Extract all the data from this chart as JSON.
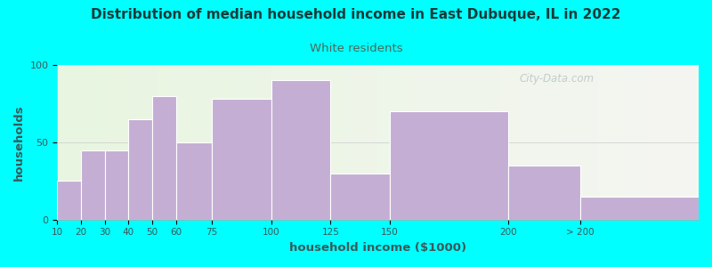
{
  "title": "Distribution of median household income in East Dubuque, IL in 2022",
  "subtitle": "White residents",
  "xlabel": "household income ($1000)",
  "ylabel": "households",
  "background_outer": "#00FFFF",
  "background_inner_left": "#e8f5e0",
  "background_inner_right": "#eaf0ea",
  "bar_color": "#c4aed4",
  "bar_edge_color": "#ffffff",
  "title_color": "#1a3a3a",
  "subtitle_color": "#4a6a5a",
  "axis_label_color": "#3a5a5a",
  "tick_label_color": "#3a5a5a",
  "ylim": [
    0,
    100
  ],
  "yticks": [
    0,
    50,
    100
  ],
  "categories": [
    "10",
    "20",
    "30",
    "40",
    "50",
    "60",
    "75",
    "100",
    "125",
    "150",
    "200",
    "> 200"
  ],
  "values": [
    25,
    45,
    45,
    65,
    80,
    50,
    78,
    90,
    30,
    70,
    35,
    15
  ],
  "bar_positions": [
    10,
    20,
    30,
    40,
    50,
    60,
    75,
    100,
    125,
    150,
    200,
    230
  ],
  "bar_widths": [
    10,
    10,
    10,
    10,
    10,
    15,
    25,
    25,
    25,
    50,
    30,
    50
  ],
  "watermark": "City-Data.com",
  "xlim": [
    10,
    280
  ]
}
